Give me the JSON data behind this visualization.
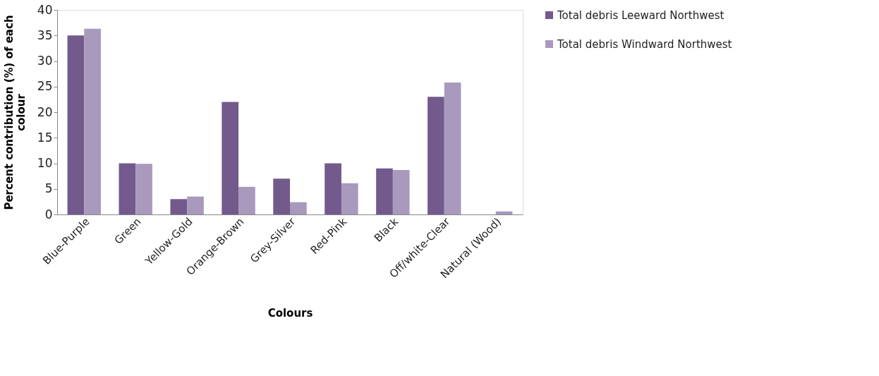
{
  "chart_data": {
    "type": "bar",
    "xlabel": "Colours",
    "ylabel": "Percent contribution (%) of each colour",
    "categories": [
      "Blue-Purple",
      "Green",
      "Yellow-Gold",
      "Orange-Brown",
      "Grey-Silver",
      "Red-Pink",
      "Black",
      "Off/white-Clear",
      "Natural (Wood)"
    ],
    "series": [
      {
        "name": "Total debris Leeward Northwest",
        "color": "#725a8c",
        "values": [
          35,
          10,
          3,
          22,
          7,
          10,
          9,
          23,
          0
        ]
      },
      {
        "name": "Total debris Windward Northwest",
        "color": "#a899bd",
        "values": [
          36.3,
          9.9,
          3.5,
          5.4,
          2.4,
          6.1,
          8.7,
          25.8,
          0.6
        ]
      }
    ],
    "ylim": [
      0,
      40
    ],
    "yticks": [
      0,
      5,
      10,
      15,
      20,
      25,
      30,
      35,
      40
    ],
    "grid": false,
    "legend": "right"
  }
}
